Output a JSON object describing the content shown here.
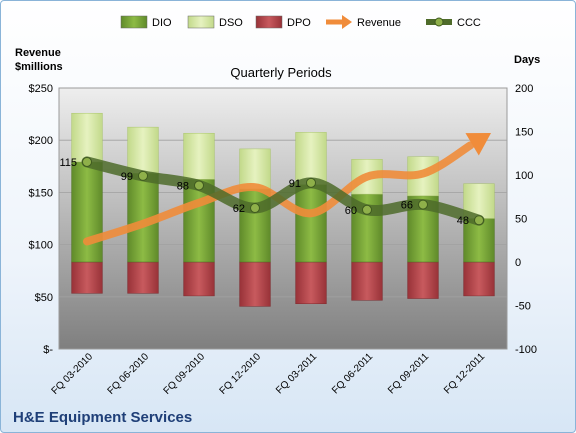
{
  "colors": {
    "dio": "#7aa33a",
    "dso": "#d4e7a0",
    "dpo": "#b84a4e",
    "revenue": "#f08c3a",
    "ccc": "#4e6b2a"
  },
  "chart_data": {
    "type": "bar",
    "title": "Quarterly Periods",
    "company": "H&E Equipment Services",
    "left_axis": {
      "label_line1": "Revenue",
      "label_line2": "$millions",
      "ylim": [
        0,
        250
      ],
      "ticks": [
        {
          "value": 0,
          "label": "$-"
        },
        {
          "value": 50,
          "label": "$50"
        },
        {
          "value": 100,
          "label": "$100"
        },
        {
          "value": 150,
          "label": "$150"
        },
        {
          "value": 200,
          "label": "$200"
        },
        {
          "value": 250,
          "label": "$250"
        }
      ]
    },
    "right_axis": {
      "label": "Days",
      "ylim": [
        -100,
        200
      ],
      "ticks": [
        {
          "value": -100,
          "label": "-100"
        },
        {
          "value": -50,
          "label": "-50"
        },
        {
          "value": 0,
          "label": "0"
        },
        {
          "value": 50,
          "label": "50"
        },
        {
          "value": 100,
          "label": "100"
        },
        {
          "value": 150,
          "label": "150"
        },
        {
          "value": 200,
          "label": "200"
        }
      ]
    },
    "categories": [
      "FQ 03-2010",
      "FQ 06-2010",
      "FQ 09-2010",
      "FQ 12-2010",
      "FQ 03-2011",
      "FQ 06-2011",
      "FQ 09-2011",
      "FQ 12-2011"
    ],
    "legend": [
      {
        "key": "dio",
        "label": "DIO",
        "kind": "box"
      },
      {
        "key": "dso",
        "label": "DSO",
        "kind": "box"
      },
      {
        "key": "dpo",
        "label": "DPO",
        "kind": "box"
      },
      {
        "key": "revenue",
        "label": "Revenue",
        "kind": "arrow"
      },
      {
        "key": "ccc",
        "label": "CCC",
        "kind": "line"
      }
    ],
    "legend_position": "top",
    "series": [
      {
        "name": "DIO",
        "axis": "right",
        "values": [
          115,
          102,
          95,
          84,
          89,
          78,
          76,
          50
        ]
      },
      {
        "name": "DSO",
        "axis": "right",
        "values": [
          56,
          53,
          53,
          46,
          60,
          40,
          45,
          40
        ]
      },
      {
        "name": "DPO",
        "axis": "right",
        "values": [
          -36,
          -36,
          -39,
          -51,
          -48,
          -44,
          -42,
          -39
        ]
      },
      {
        "name": "Revenue",
        "axis": "left",
        "values": [
          103,
          120,
          140,
          155,
          130,
          165,
          168,
          200
        ]
      },
      {
        "name": "CCC",
        "axis": "right",
        "values": [
          115,
          99,
          88,
          62,
          91,
          60,
          66,
          48
        ]
      }
    ],
    "ccc_labels": [
      "115",
      "99",
      "88",
      "62",
      "91",
      "60",
      "66",
      "48"
    ]
  }
}
